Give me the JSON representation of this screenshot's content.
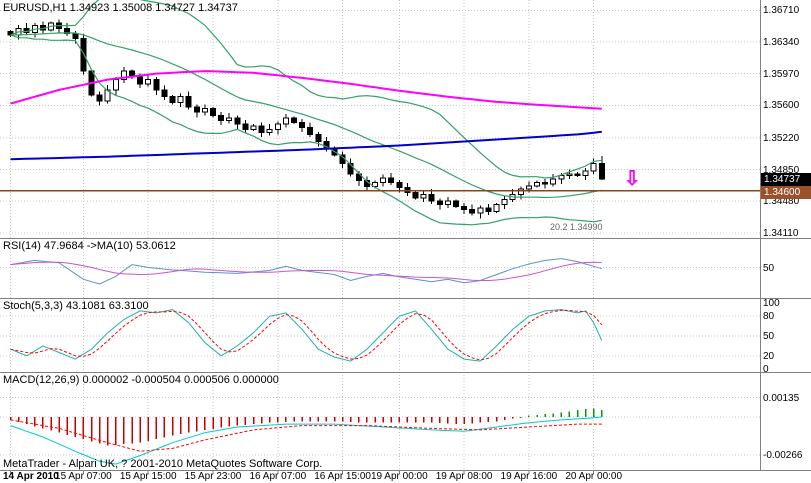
{
  "header": {
    "title": "EURUSD,H1 1.34923 1.35008 1.34727 1.34737"
  },
  "panels": {
    "rsi": {
      "label": "RSI(14) 47.9684 ->MA(10) 53.0612"
    },
    "stoch": {
      "label": "Stoch(5,3,3) 43.1081 63.3100"
    },
    "macd": {
      "label": "MACD(12,26,9) 0.000002 -0.000504 0.000506 0.000000"
    }
  },
  "footer": {
    "credit": "MetaTrader - Alpari UK, ? 2001-2010 MetaQuotes Software Corp."
  },
  "badges": {
    "current_price": "1.34737",
    "hline_price": "1.34600"
  },
  "annotations": {
    "small_note": "20.2 1.34990",
    "down_arrow": "⇩"
  },
  "axes": {
    "price_labels": [
      "1.36710",
      "1.36340",
      "1.35970",
      "1.35600",
      "1.35220",
      "1.34850",
      "1.34480",
      "1.34110"
    ],
    "rsi_labels": [
      "50"
    ],
    "stoch_labels": [
      "100",
      "80",
      "50",
      "20",
      "0"
    ],
    "macd_labels": [
      "0.00135",
      "-0.00266"
    ],
    "time_labels": [
      "14 Apr 2010",
      "15 Apr 07:00",
      "15 Apr 15:00",
      "15 Apr 23:00",
      "16 Apr 07:00",
      "16 Apr 15:00",
      "19 Apr 00:00",
      "19 Apr 08:00",
      "19 Apr 16:00",
      "20 Apr 00:00"
    ],
    "time_label_indices": [
      0,
      9,
      17,
      25,
      33,
      41,
      48,
      56,
      64,
      72
    ]
  },
  "colors": {
    "background": "#ffffff",
    "grid": "#c8c8c8",
    "separator": "#808080",
    "candle_up_fill": "#ffffff",
    "candle_down_fill": "#000000",
    "candle_outline": "#000000",
    "bollinger": "#35a06a",
    "ma_fast": "#ff00ff",
    "ma_slow": "#0000cc",
    "hline": "#8b4513",
    "hline_badge_bg": "#99522b",
    "price_badge_bg": "#000000",
    "rsi_line": "#5f8fd0",
    "rsi_ma": "#cc55cc",
    "stoch_main": "#20b2aa",
    "stoch_signal": "#ff0000",
    "macd_line": "#00cccc",
    "macd_signal": "#ff0000",
    "macd_hist_neg": "#cc0000",
    "macd_hist_pos": "#009900",
    "arrow": "#ff00ff"
  },
  "chart_data": [
    {
      "type": "candlestick",
      "title": "EURUSD,H1",
      "ohlc_current": {
        "open": 1.34923,
        "high": 1.35008,
        "low": 1.34727,
        "close": 1.34737
      },
      "closes": [
        1.3642,
        1.365,
        1.3645,
        1.3653,
        1.3648,
        1.3656,
        1.365,
        1.3644,
        1.3638,
        1.36,
        1.3572,
        1.3565,
        1.3578,
        1.359,
        1.36,
        1.3593,
        1.3585,
        1.359,
        1.3578,
        1.357,
        1.3563,
        1.357,
        1.3558,
        1.3552,
        1.3556,
        1.3548,
        1.3542,
        1.3545,
        1.3538,
        1.3532,
        1.3536,
        1.3528,
        1.3532,
        1.3538,
        1.3545,
        1.354,
        1.3534,
        1.3526,
        1.3518,
        1.351,
        1.3502,
        1.3492,
        1.348,
        1.3472,
        1.3465,
        1.347,
        1.3475,
        1.347,
        1.3464,
        1.3458,
        1.3452,
        1.3456,
        1.3448,
        1.3444,
        1.3448,
        1.3442,
        1.3438,
        1.3434,
        1.344,
        1.3436,
        1.3444,
        1.345,
        1.3456,
        1.3462,
        1.3466,
        1.347,
        1.3468,
        1.3474,
        1.3478,
        1.348,
        1.3478,
        1.3483,
        1.3492,
        1.34737
      ],
      "ylim": [
        1.3405,
        1.3683
      ],
      "overlays": {
        "bollinger_period": 20,
        "bollinger_dev": 2,
        "ma_fast_points": [
          [
            0,
            1.3562
          ],
          [
            6,
            1.3578
          ],
          [
            12,
            1.359
          ],
          [
            18,
            1.3597
          ],
          [
            24,
            1.36
          ],
          [
            30,
            1.3598
          ],
          [
            36,
            1.3592
          ],
          [
            42,
            1.3585
          ],
          [
            48,
            1.3577
          ],
          [
            54,
            1.357
          ],
          [
            60,
            1.3564
          ],
          [
            66,
            1.356
          ],
          [
            73,
            1.3556
          ]
        ],
        "ma_slow_points": [
          [
            0,
            1.3497
          ],
          [
            12,
            1.35
          ],
          [
            24,
            1.3504
          ],
          [
            36,
            1.3508
          ],
          [
            48,
            1.3513
          ],
          [
            60,
            1.352
          ],
          [
            70,
            1.3526
          ],
          [
            73,
            1.3529
          ]
        ],
        "hline": 1.346
      }
    },
    {
      "type": "line",
      "name": "RSI(14)",
      "current": 47.9684,
      "ma_current": 53.0612,
      "ma_period": 10,
      "ylim": [
        0,
        100
      ],
      "levels": [
        50
      ],
      "points": [
        [
          0,
          55
        ],
        [
          3,
          62
        ],
        [
          6,
          58
        ],
        [
          9,
          30
        ],
        [
          11,
          22
        ],
        [
          13,
          35
        ],
        [
          15,
          55
        ],
        [
          17,
          50
        ],
        [
          20,
          46
        ],
        [
          24,
          42
        ],
        [
          28,
          40
        ],
        [
          32,
          45
        ],
        [
          34,
          52
        ],
        [
          36,
          45
        ],
        [
          40,
          38
        ],
        [
          42,
          28
        ],
        [
          44,
          35
        ],
        [
          46,
          40
        ],
        [
          48,
          34
        ],
        [
          50,
          30
        ],
        [
          52,
          26
        ],
        [
          54,
          30
        ],
        [
          56,
          24
        ],
        [
          58,
          28
        ],
        [
          60,
          38
        ],
        [
          62,
          48
        ],
        [
          64,
          56
        ],
        [
          66,
          62
        ],
        [
          68,
          65
        ],
        [
          70,
          60
        ],
        [
          72,
          52
        ],
        [
          73,
          48
        ]
      ]
    },
    {
      "type": "line",
      "name": "Stoch(5,3,3)",
      "current": 43.1081,
      "signal_current": 63.31,
      "d_period": 3,
      "ylim": [
        0,
        100
      ],
      "levels": [
        20,
        50,
        80
      ],
      "k_points": [
        [
          0,
          30
        ],
        [
          2,
          20
        ],
        [
          4,
          35
        ],
        [
          6,
          25
        ],
        [
          8,
          15
        ],
        [
          10,
          30
        ],
        [
          12,
          55
        ],
        [
          14,
          75
        ],
        [
          16,
          88
        ],
        [
          18,
          85
        ],
        [
          20,
          90
        ],
        [
          22,
          70
        ],
        [
          24,
          40
        ],
        [
          26,
          20
        ],
        [
          28,
          35
        ],
        [
          30,
          55
        ],
        [
          32,
          80
        ],
        [
          34,
          85
        ],
        [
          36,
          60
        ],
        [
          38,
          30
        ],
        [
          40,
          18
        ],
        [
          42,
          12
        ],
        [
          44,
          30
        ],
        [
          46,
          55
        ],
        [
          48,
          80
        ],
        [
          50,
          88
        ],
        [
          52,
          60
        ],
        [
          54,
          30
        ],
        [
          56,
          15
        ],
        [
          58,
          12
        ],
        [
          60,
          35
        ],
        [
          62,
          60
        ],
        [
          64,
          80
        ],
        [
          66,
          88
        ],
        [
          68,
          90
        ],
        [
          70,
          85
        ],
        [
          71,
          88
        ],
        [
          72,
          70
        ],
        [
          73,
          43
        ]
      ]
    },
    {
      "type": "macd",
      "name": "MACD(12,26,9)",
      "values": [
        2e-06,
        -0.000504,
        0.000506,
        0.0
      ],
      "ylim": [
        -0.00371,
        0.00315
      ],
      "hist_points": [
        [
          0,
          -0.0002
        ],
        [
          4,
          -0.0008
        ],
        [
          8,
          -0.0014
        ],
        [
          12,
          -0.002
        ],
        [
          16,
          -0.0018
        ],
        [
          20,
          -0.0013
        ],
        [
          24,
          -0.0009
        ],
        [
          28,
          -0.0006
        ],
        [
          32,
          -0.0004
        ],
        [
          36,
          -0.0003
        ],
        [
          40,
          -0.0003
        ],
        [
          44,
          -0.0004
        ],
        [
          48,
          -0.0004
        ],
        [
          52,
          -0.0004
        ],
        [
          56,
          -0.0005
        ],
        [
          60,
          -0.0003
        ],
        [
          62,
          -0.0001
        ],
        [
          64,
          0.0001
        ],
        [
          66,
          0.0002
        ],
        [
          68,
          0.0003
        ],
        [
          70,
          0.0005
        ],
        [
          72,
          0.0006
        ],
        [
          73,
          0.0005
        ]
      ],
      "line_points": [
        [
          0,
          -0.0006
        ],
        [
          4,
          -0.0014
        ],
        [
          8,
          -0.0024
        ],
        [
          11,
          -0.0031
        ],
        [
          13,
          -0.0033
        ],
        [
          16,
          -0.0027
        ],
        [
          20,
          -0.0018
        ],
        [
          24,
          -0.0011
        ],
        [
          28,
          -0.0007
        ],
        [
          34,
          -0.0005
        ],
        [
          40,
          -0.0005
        ],
        [
          46,
          -0.0007
        ],
        [
          52,
          -0.0009
        ],
        [
          56,
          -0.001
        ],
        [
          60,
          -0.0007
        ],
        [
          64,
          -0.0004
        ],
        [
          68,
          -0.0002
        ],
        [
          71,
          -0.0001
        ],
        [
          73,
          0.0
        ]
      ],
      "signal_points": [
        [
          0,
          -0.0002
        ],
        [
          6,
          -0.0008
        ],
        [
          12,
          -0.0018
        ],
        [
          16,
          -0.0024
        ],
        [
          20,
          -0.0022
        ],
        [
          24,
          -0.0016
        ],
        [
          30,
          -0.0009
        ],
        [
          36,
          -0.0006
        ],
        [
          44,
          -0.0006
        ],
        [
          52,
          -0.0008
        ],
        [
          58,
          -0.0009
        ],
        [
          64,
          -0.0007
        ],
        [
          70,
          -0.0005
        ],
        [
          73,
          -0.0005
        ]
      ]
    }
  ]
}
